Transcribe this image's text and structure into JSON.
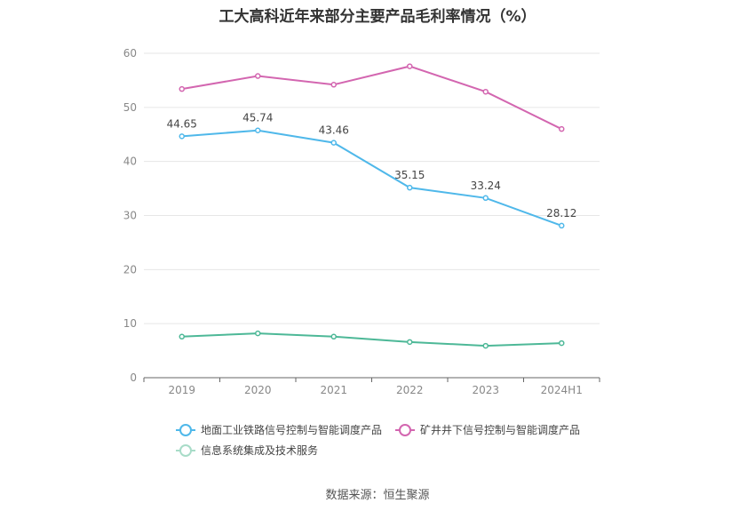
{
  "chart_data": {
    "type": "line",
    "title": "工大高科近年来部分主要产品毛利率情况（%）",
    "categories": [
      "2019",
      "2020",
      "2021",
      "2022",
      "2023",
      "2024H1"
    ],
    "ylim": [
      0,
      60
    ],
    "yticks": [
      0,
      10,
      20,
      30,
      40,
      50,
      60
    ],
    "grid": true,
    "legend_position": "bottom",
    "series": [
      {
        "name": "地面工业铁路信号控制与智能调度产品",
        "color": "#4fb8ea",
        "values": [
          44.65,
          45.74,
          43.46,
          35.15,
          33.24,
          28.12
        ],
        "labels": true
      },
      {
        "name": "矿井井下信号控制与智能调度产品",
        "color": "#d366b0",
        "values": [
          53.4,
          55.8,
          54.2,
          57.6,
          52.9,
          46.0
        ],
        "labels": false
      },
      {
        "name": "信息系统集成及技术服务",
        "color": "#4db897",
        "values": [
          7.6,
          8.2,
          7.6,
          6.6,
          5.9,
          6.4
        ],
        "labels": false
      }
    ]
  },
  "source": "数据来源：恒生聚源"
}
